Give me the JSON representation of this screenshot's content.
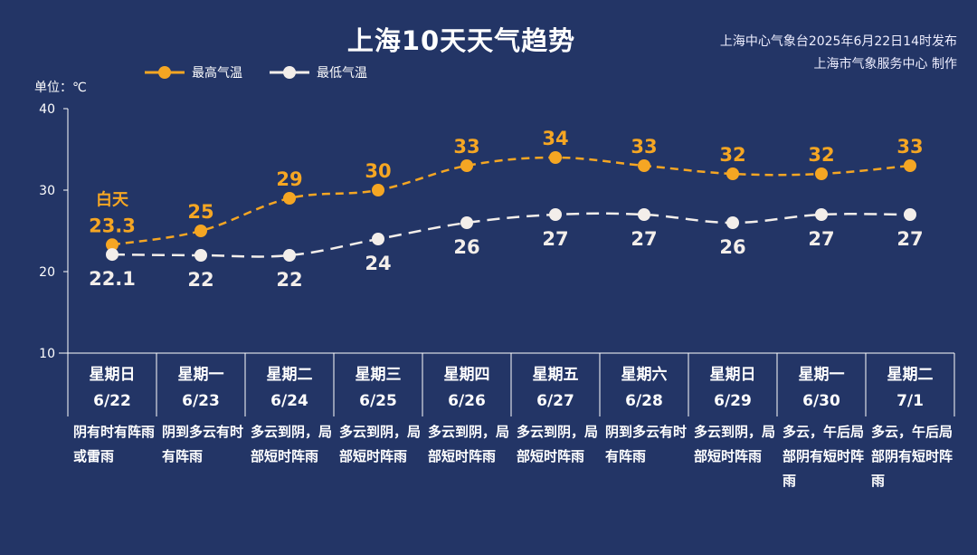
{
  "chart_data": {
    "type": "line",
    "title": "上海10天天气趋势",
    "source": "上海中心气象台2025年6月22日14时发布",
    "producer": "上海市气象服务中心 制作",
    "unit_label": "单位：℃",
    "ylim": [
      10,
      40
    ],
    "yticks": [
      "10",
      "20",
      "30",
      "40"
    ],
    "grid": false,
    "legend_placement": "top-left",
    "day_label": "白天",
    "categories": [
      {
        "weekday": "星期日",
        "date": "6/22",
        "weather": "阴有时有阵雨或雷雨"
      },
      {
        "weekday": "星期一",
        "date": "6/23",
        "weather": "阴到多云有时有阵雨"
      },
      {
        "weekday": "星期二",
        "date": "6/24",
        "weather": "多云到阴，局部短时阵雨"
      },
      {
        "weekday": "星期三",
        "date": "6/25",
        "weather": "多云到阴，局部短时阵雨"
      },
      {
        "weekday": "星期四",
        "date": "6/26",
        "weather": "多云到阴，局部短时阵雨"
      },
      {
        "weekday": "星期五",
        "date": "6/27",
        "weather": "多云到阴，局部短时阵雨"
      },
      {
        "weekday": "星期六",
        "date": "6/28",
        "weather": "阴到多云有时有阵雨"
      },
      {
        "weekday": "星期日",
        "date": "6/29",
        "weather": "多云到阴，局部短时阵雨"
      },
      {
        "weekday": "星期一",
        "date": "6/30",
        "weather": "多云，午后局部阴有短时阵雨"
      },
      {
        "weekday": "星期二",
        "date": "7/1",
        "weather": "多云，午后局部阴有短时阵雨"
      }
    ],
    "series": [
      {
        "name": "最高气温",
        "color": "#f5a623",
        "values": [
          23.3,
          25,
          29,
          30,
          33,
          34,
          33,
          32,
          32,
          33
        ],
        "labels": [
          "23.3",
          "25",
          "29",
          "30",
          "33",
          "34",
          "33",
          "32",
          "32",
          "33"
        ]
      },
      {
        "name": "最低气温",
        "color": "#f3eeea",
        "values": [
          22.1,
          22,
          22,
          24,
          26,
          27,
          27,
          26,
          27,
          27
        ],
        "labels": [
          "22.1",
          "22",
          "22",
          "24",
          "26",
          "27",
          "27",
          "26",
          "27",
          "27"
        ]
      }
    ],
    "colors": {
      "background": "#233566",
      "axis": "#ffffff"
    }
  }
}
